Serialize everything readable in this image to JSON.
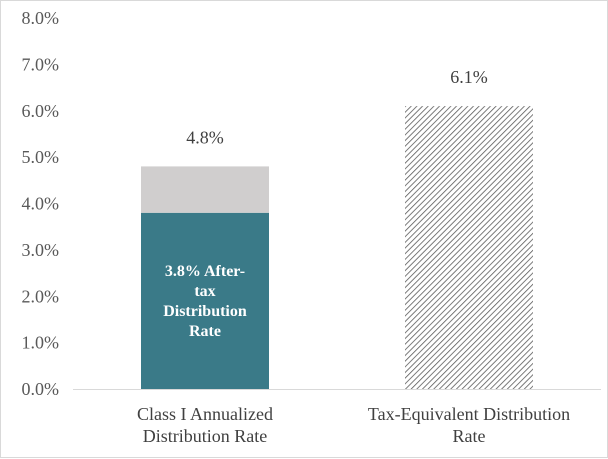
{
  "chart_data": {
    "type": "bar",
    "stacked": true,
    "categories": [
      [
        "Class I Annualized",
        "Distribution Rate"
      ],
      [
        "Tax-Equivalent Distribution",
        "Rate"
      ]
    ],
    "series": [
      {
        "values": [
          3.8,
          null
        ],
        "color": "#3a7a88",
        "pattern": "solid"
      },
      {
        "values": [
          1.0,
          null
        ],
        "color": "#d0cece",
        "pattern": "solid"
      },
      {
        "values": [
          null,
          6.1
        ],
        "color": "#595959",
        "pattern": "diagonal-hatch"
      }
    ],
    "totals": [
      4.8,
      6.1
    ],
    "total_labels": [
      "4.8%",
      "6.1%"
    ],
    "inner_label": [
      "3.8% After-",
      "tax",
      "Distribution",
      "Rate"
    ],
    "ylim": [
      0,
      8
    ],
    "y_ticks": [
      "0.0%",
      "1.0%",
      "2.0%",
      "3.0%",
      "4.0%",
      "5.0%",
      "6.0%",
      "7.0%",
      "8.0%"
    ],
    "grid": false,
    "legend": "none"
  }
}
